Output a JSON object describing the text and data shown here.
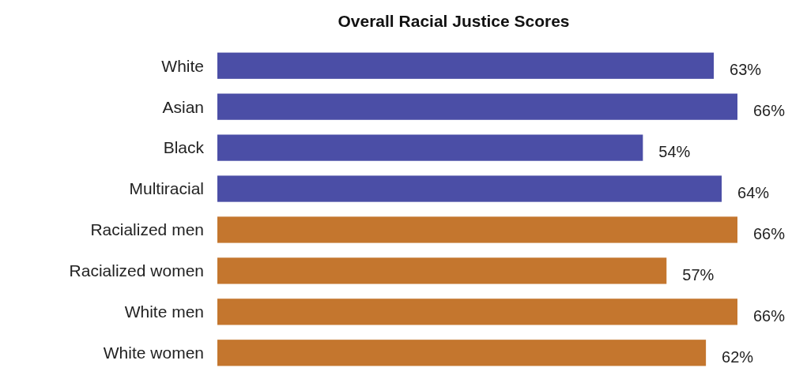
{
  "chart_data": {
    "type": "bar",
    "orientation": "horizontal",
    "title": "Overall Racial Justice Scores",
    "categories": [
      "White",
      "Asian",
      "Black",
      "Multiracial",
      "Racialized men",
      "Racialized women",
      "White men",
      "White women"
    ],
    "values": [
      63,
      66,
      54,
      64,
      66,
      57,
      66,
      62
    ],
    "colors": [
      "#4b4ea6",
      "#4b4ea6",
      "#4b4ea6",
      "#4b4ea6",
      "#c4762e",
      "#c4762e",
      "#c4762e",
      "#c4762e"
    ],
    "value_labels": [
      "63%",
      "66%",
      "54%",
      "64%",
      "66%",
      "57%",
      "66%",
      "62%"
    ]
  }
}
